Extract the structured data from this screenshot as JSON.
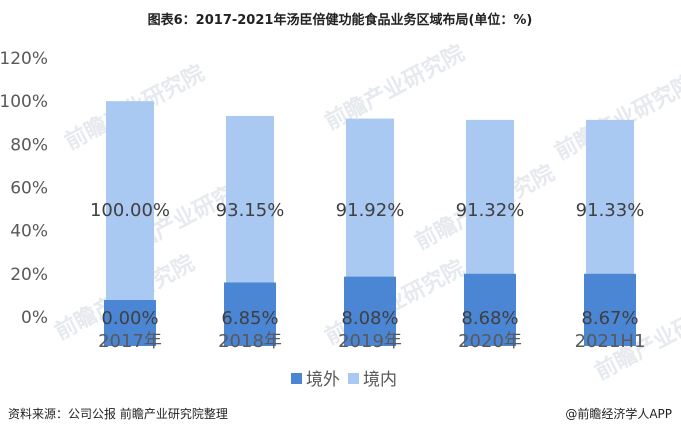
{
  "chart_data": {
    "type": "bar",
    "stacked": true,
    "title": "图表6：2017-2021年汤臣倍健功能食品业务区域布局(单位：%)",
    "categories": [
      "2017年",
      "2018年",
      "2019年",
      "2020年",
      "2021H1"
    ],
    "series": [
      {
        "name": "境外",
        "values": [
          0.0,
          6.85,
          8.08,
          8.68,
          8.67
        ],
        "labels": [
          "0.00%",
          "6.85%",
          "8.08%",
          "8.68%",
          "8.67%"
        ],
        "color": "#4a86d4"
      },
      {
        "name": "境内",
        "values": [
          100.0,
          93.15,
          91.92,
          91.32,
          91.33
        ],
        "labels": [
          "100.00%",
          "93.15%",
          "91.92%",
          "91.32%",
          "91.33%"
        ],
        "color": "#a9c8f2"
      }
    ],
    "ylim": [
      0,
      120
    ],
    "yticks": [
      0,
      20,
      40,
      60,
      80,
      100,
      120
    ],
    "ytick_labels": [
      "0%",
      "20%",
      "40%",
      "60%",
      "80%",
      "100%",
      "120%"
    ],
    "legend": "bottom",
    "grid": false
  },
  "footer": {
    "source": "资料来源：公司公报 前瞻产业研究院整理",
    "brand": "@前瞻经济学人APP"
  },
  "watermark": "前瞻产业研究院"
}
